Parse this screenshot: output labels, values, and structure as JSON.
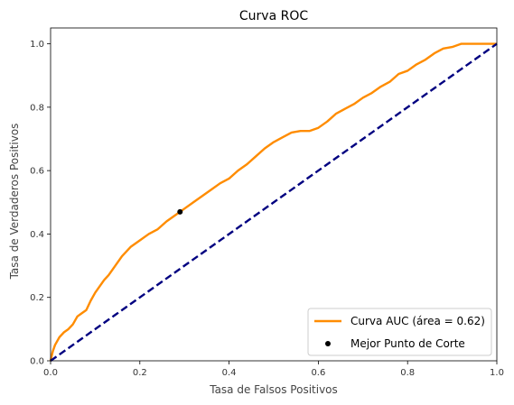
{
  "chart_data": {
    "type": "line",
    "title": "Curva ROC",
    "xlabel": "Tasa de Falsos Positivos",
    "ylabel": "Tasa de Verdaderos Positivos",
    "xlim": [
      0.0,
      1.0
    ],
    "ylim": [
      0.0,
      1.05
    ],
    "xticks": [
      "0.0",
      "0.2",
      "0.4",
      "0.6",
      "0.8",
      "1.0"
    ],
    "yticks": [
      "0.0",
      "0.2",
      "0.4",
      "0.6",
      "0.8",
      "1.0"
    ],
    "grid": false,
    "legend_position": "lower-right",
    "series": [
      {
        "name": "Curva AUC (área = 0.62)",
        "color": "#ff8c00",
        "style": "solid",
        "x": [
          0.0,
          0.005,
          0.01,
          0.02,
          0.03,
          0.04,
          0.05,
          0.06,
          0.07,
          0.08,
          0.09,
          0.1,
          0.11,
          0.12,
          0.13,
          0.14,
          0.15,
          0.16,
          0.18,
          0.2,
          0.22,
          0.24,
          0.26,
          0.28,
          0.3,
          0.32,
          0.34,
          0.36,
          0.38,
          0.4,
          0.42,
          0.44,
          0.46,
          0.48,
          0.5,
          0.52,
          0.54,
          0.56,
          0.58,
          0.6,
          0.62,
          0.64,
          0.66,
          0.68,
          0.7,
          0.72,
          0.74,
          0.76,
          0.78,
          0.8,
          0.82,
          0.84,
          0.86,
          0.88,
          0.9,
          0.92,
          0.94,
          0.96,
          0.98,
          1.0
        ],
        "y": [
          0.0,
          0.03,
          0.05,
          0.075,
          0.09,
          0.1,
          0.115,
          0.14,
          0.15,
          0.16,
          0.19,
          0.215,
          0.235,
          0.255,
          0.27,
          0.29,
          0.31,
          0.33,
          0.36,
          0.38,
          0.4,
          0.415,
          0.44,
          0.46,
          0.48,
          0.5,
          0.52,
          0.54,
          0.56,
          0.575,
          0.6,
          0.62,
          0.645,
          0.67,
          0.69,
          0.705,
          0.72,
          0.725,
          0.725,
          0.735,
          0.755,
          0.78,
          0.795,
          0.81,
          0.83,
          0.845,
          0.865,
          0.88,
          0.905,
          0.915,
          0.935,
          0.95,
          0.97,
          0.985,
          0.99,
          1.0,
          1.0,
          1.0,
          1.0,
          1.0
        ]
      },
      {
        "name": "",
        "color": "#000080",
        "style": "dashed",
        "x": [
          0.0,
          1.0
        ],
        "y": [
          0.0,
          1.0
        ]
      }
    ],
    "points": [
      {
        "name": "Mejor Punto de Corte",
        "color": "#000000",
        "x": 0.29,
        "y": 0.47
      }
    ]
  }
}
